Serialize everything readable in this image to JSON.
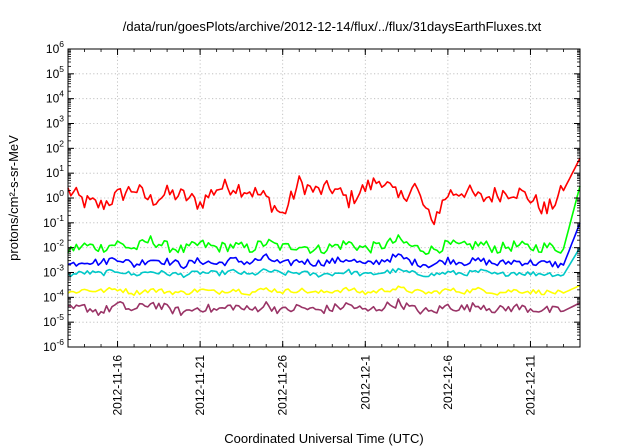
{
  "chart_data": {
    "type": "line",
    "title": "/data/run/goesPlots/archive/2012-12-14/flux/../flux/31daysEarthFluxes.txt",
    "xlabel": "Coordinated Universal Time (UTC)",
    "ylabel": "protons/cm²-s-sr-MeV",
    "y_scale": "log",
    "ylim": [
      "1e-6",
      "1e6"
    ],
    "xlim": [
      "2012-11-13",
      "2012-12-14"
    ],
    "x_ticks": [
      "2012-11-16",
      "2012-11-21",
      "2012-11-26",
      "2012-12-1",
      "2012-12-6",
      "2012-12-11"
    ],
    "y_ticks": [
      {
        "base": "10",
        "exp": "-6",
        "value": 1e-06
      },
      {
        "base": "10",
        "exp": "-5",
        "value": 1e-05
      },
      {
        "base": "10",
        "exp": "-4",
        "value": 0.0001
      },
      {
        "base": "10",
        "exp": "-3",
        "value": 0.001
      },
      {
        "base": "10",
        "exp": "-2",
        "value": 0.01
      },
      {
        "base": "10",
        "exp": "-1",
        "value": 0.1
      },
      {
        "base": "10",
        "exp": "0",
        "value": 1
      },
      {
        "base": "10",
        "exp": "1",
        "value": 10
      },
      {
        "base": "10",
        "exp": "2",
        "value": 100
      },
      {
        "base": "10",
        "exp": "3",
        "value": 1000
      },
      {
        "base": "10",
        "exp": "4",
        "value": 10000
      },
      {
        "base": "10",
        "exp": "5",
        "value": 100000
      },
      {
        "base": "10",
        "exp": "6",
        "value": 1000000
      }
    ],
    "grid": true,
    "series": [
      {
        "color": "#ff0000",
        "x": [
          "2012-11-13",
          "2012-11-14",
          "2012-11-15",
          "2012-11-16",
          "2012-11-17",
          "2012-11-18",
          "2012-11-19",
          "2012-11-20",
          "2012-11-21",
          "2012-11-22",
          "2012-11-23",
          "2012-11-24",
          "2012-11-25",
          "2012-11-26",
          "2012-11-27",
          "2012-11-28",
          "2012-11-29",
          "2012-11-30",
          "2012-12-1",
          "2012-12-2",
          "2012-12-3",
          "2012-12-4",
          "2012-12-5",
          "2012-12-6",
          "2012-12-7",
          "2012-12-8",
          "2012-12-9",
          "2012-12-10",
          "2012-12-11",
          "2012-12-12",
          "2012-12-13",
          "2012-12-14"
        ],
        "y": [
          2.0,
          0.7,
          0.5,
          1.2,
          2.5,
          0.8,
          1.5,
          1.2,
          0.6,
          2.5,
          3.0,
          2.0,
          1.0,
          0.2,
          4.0,
          1.8,
          2.5,
          0.8,
          2.5,
          6.0,
          0.9,
          3.0,
          0.1,
          1.5,
          2.0,
          0.9,
          1.5,
          2.0,
          1.0,
          0.3,
          2.0,
          40.0
        ]
      },
      {
        "color": "#00ff00",
        "x": [
          "2012-11-13",
          "2012-11-14",
          "2012-11-15",
          "2012-11-16",
          "2012-11-17",
          "2012-11-18",
          "2012-11-19",
          "2012-11-20",
          "2012-11-21",
          "2012-11-22",
          "2012-11-23",
          "2012-11-24",
          "2012-11-25",
          "2012-11-26",
          "2012-11-27",
          "2012-11-28",
          "2012-11-29",
          "2012-11-30",
          "2012-12-1",
          "2012-12-2",
          "2012-12-3",
          "2012-12-4",
          "2012-12-5",
          "2012-12-6",
          "2012-12-7",
          "2012-12-8",
          "2012-12-9",
          "2012-12-10",
          "2012-12-11",
          "2012-12-12",
          "2012-12-13",
          "2012-12-14"
        ],
        "y": [
          0.008,
          0.012,
          0.01,
          0.015,
          0.009,
          0.02,
          0.011,
          0.008,
          0.014,
          0.01,
          0.012,
          0.009,
          0.016,
          0.01,
          0.013,
          0.008,
          0.011,
          0.015,
          0.009,
          0.012,
          0.02,
          0.01,
          0.008,
          0.013,
          0.011,
          0.014,
          0.009,
          0.012,
          0.01,
          0.011,
          0.009,
          3.0
        ]
      },
      {
        "color": "#0000ff",
        "x": [
          "2012-11-13",
          "2012-11-14",
          "2012-11-15",
          "2012-11-16",
          "2012-11-17",
          "2012-11-18",
          "2012-11-19",
          "2012-11-20",
          "2012-11-21",
          "2012-11-22",
          "2012-11-23",
          "2012-11-24",
          "2012-11-25",
          "2012-11-26",
          "2012-11-27",
          "2012-11-28",
          "2012-11-29",
          "2012-11-30",
          "2012-12-1",
          "2012-12-2",
          "2012-12-3",
          "2012-12-4",
          "2012-12-5",
          "2012-12-6",
          "2012-12-7",
          "2012-12-8",
          "2012-12-9",
          "2012-12-10",
          "2012-12-11",
          "2012-12-12",
          "2012-12-13",
          "2012-12-14"
        ],
        "y": [
          0.002,
          0.003,
          0.0025,
          0.004,
          0.002,
          0.0035,
          0.0028,
          0.002,
          0.003,
          0.0022,
          0.0032,
          0.0025,
          0.004,
          0.0021,
          0.003,
          0.0024,
          0.0028,
          0.0035,
          0.002,
          0.003,
          0.0045,
          0.0025,
          0.002,
          0.0032,
          0.0026,
          0.003,
          0.0022,
          0.0028,
          0.0025,
          0.0023,
          0.002,
          0.1
        ]
      },
      {
        "color": "#00c8c8",
        "x": [
          "2012-11-13",
          "2012-11-14",
          "2012-11-15",
          "2012-11-16",
          "2012-11-17",
          "2012-11-18",
          "2012-11-19",
          "2012-11-20",
          "2012-11-21",
          "2012-11-22",
          "2012-11-23",
          "2012-11-24",
          "2012-11-25",
          "2012-11-26",
          "2012-11-27",
          "2012-11-28",
          "2012-11-29",
          "2012-11-30",
          "2012-12-1",
          "2012-12-2",
          "2012-12-3",
          "2012-12-4",
          "2012-12-5",
          "2012-12-6",
          "2012-12-7",
          "2012-12-8",
          "2012-12-9",
          "2012-12-10",
          "2012-12-11",
          "2012-12-12",
          "2012-12-13",
          "2012-12-14"
        ],
        "y": [
          0.0008,
          0.001,
          0.0009,
          0.0012,
          0.0008,
          0.0011,
          0.0009,
          0.0008,
          0.001,
          0.0009,
          0.0011,
          0.0008,
          0.0012,
          0.0009,
          0.001,
          0.0008,
          0.0009,
          0.0011,
          0.0008,
          0.001,
          0.0012,
          0.0009,
          0.0008,
          0.001,
          0.0009,
          0.0011,
          0.0008,
          0.001,
          0.0009,
          0.0009,
          0.0008,
          0.01
        ]
      },
      {
        "color": "#ffff00",
        "x": [
          "2012-11-13",
          "2012-11-14",
          "2012-11-15",
          "2012-11-16",
          "2012-11-17",
          "2012-11-18",
          "2012-11-19",
          "2012-11-20",
          "2012-11-21",
          "2012-11-22",
          "2012-11-23",
          "2012-11-24",
          "2012-11-25",
          "2012-11-26",
          "2012-11-27",
          "2012-11-28",
          "2012-11-29",
          "2012-11-30",
          "2012-12-1",
          "2012-12-2",
          "2012-12-3",
          "2012-12-4",
          "2012-12-5",
          "2012-12-6",
          "2012-12-7",
          "2012-12-8",
          "2012-12-9",
          "2012-12-10",
          "2012-12-11",
          "2012-12-12",
          "2012-12-13",
          "2012-12-14"
        ],
        "y": [
          0.00015,
          0.0002,
          0.00018,
          0.00022,
          0.00015,
          0.0002,
          0.00017,
          0.00015,
          0.0002,
          0.00016,
          0.00021,
          0.00015,
          0.00022,
          0.00017,
          0.0002,
          0.00015,
          0.00018,
          0.00021,
          0.00015,
          0.00019,
          0.00023,
          0.00017,
          0.00015,
          0.0002,
          0.00017,
          0.00021,
          0.00015,
          0.00019,
          0.00017,
          0.00016,
          0.00015,
          0.0003
        ]
      },
      {
        "color": "#993366",
        "x": [
          "2012-11-13",
          "2012-11-14",
          "2012-11-15",
          "2012-11-16",
          "2012-11-17",
          "2012-11-18",
          "2012-11-19",
          "2012-11-20",
          "2012-11-21",
          "2012-11-22",
          "2012-11-23",
          "2012-11-24",
          "2012-11-25",
          "2012-11-26",
          "2012-11-27",
          "2012-11-28",
          "2012-11-29",
          "2012-11-30",
          "2012-12-1",
          "2012-12-2",
          "2012-12-3",
          "2012-12-4",
          "2012-12-5",
          "2012-12-6",
          "2012-12-7",
          "2012-12-8",
          "2012-12-9",
          "2012-12-10",
          "2012-12-11",
          "2012-12-12",
          "2012-12-13",
          "2012-12-14"
        ],
        "y": [
          3e-05,
          4e-05,
          2.5e-05,
          5e-05,
          3e-05,
          6e-05,
          3.5e-05,
          2.5e-05,
          4e-05,
          3e-05,
          4.5e-05,
          3e-05,
          5e-05,
          2.8e-05,
          4e-05,
          3e-05,
          3.5e-05,
          5e-05,
          2.8e-05,
          4e-05,
          6e-05,
          3.2e-05,
          2.5e-05,
          4.5e-05,
          3.5e-05,
          5e-05,
          3e-05,
          4e-05,
          3.5e-05,
          3e-05,
          2.8e-05,
          6e-05
        ]
      }
    ]
  }
}
